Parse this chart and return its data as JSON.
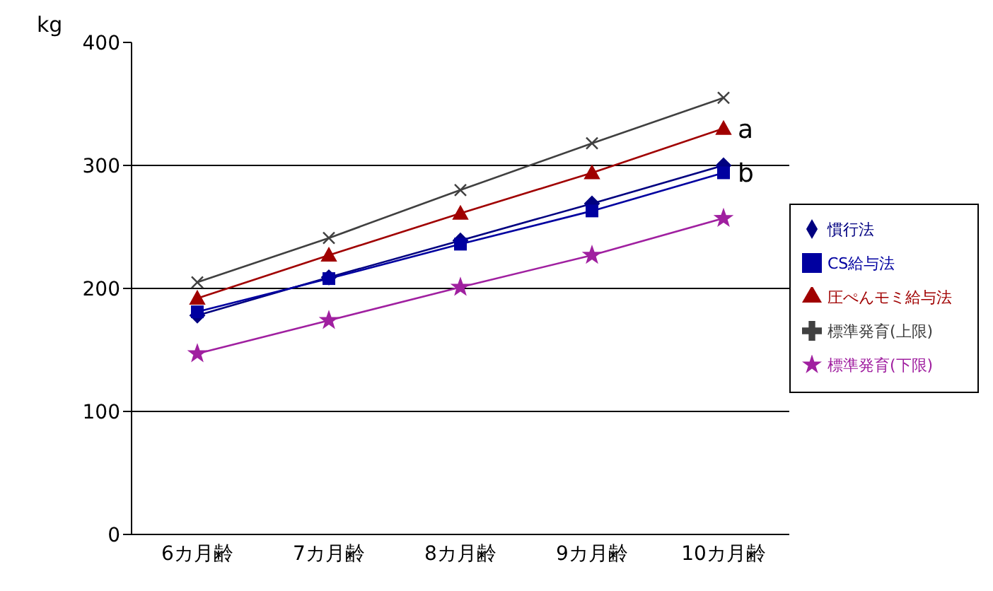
{
  "chart_data": {
    "type": "line",
    "ylabel": "kg",
    "categories": [
      "6カ月齢",
      "7カ月齢",
      "8カ月齢",
      "9カ月齢",
      "10カ月齢"
    ],
    "series": [
      {
        "name": "慣行法",
        "color": "#000080",
        "marker": "diamond",
        "values": [
          178,
          209,
          239,
          269,
          300
        ]
      },
      {
        "name": "CS給与法",
        "color": "#0000a0",
        "marker": "square",
        "values": [
          181,
          208,
          236,
          263,
          294
        ]
      },
      {
        "name": "圧ぺんモミ給与法",
        "color": "#a00000",
        "marker": "triangle",
        "values": [
          192,
          227,
          261,
          294,
          330
        ]
      },
      {
        "name": "標準発育(上限)",
        "color": "#404040",
        "marker": "cross",
        "values": [
          205,
          241,
          280,
          318,
          355
        ]
      },
      {
        "name": "標準発育(下限)",
        "color": "#a020a0",
        "marker": "star",
        "values": [
          147,
          174,
          201,
          227,
          257
        ]
      }
    ],
    "ylim": [
      0,
      400
    ],
    "yticks": [
      0,
      100,
      200,
      300,
      400
    ],
    "grid": "y",
    "legend": "right",
    "annotations": [
      {
        "text": "a",
        "x": "10カ月齢",
        "y": 330
      },
      {
        "text": "b",
        "x": "10カ月齢",
        "y": 294
      }
    ]
  }
}
